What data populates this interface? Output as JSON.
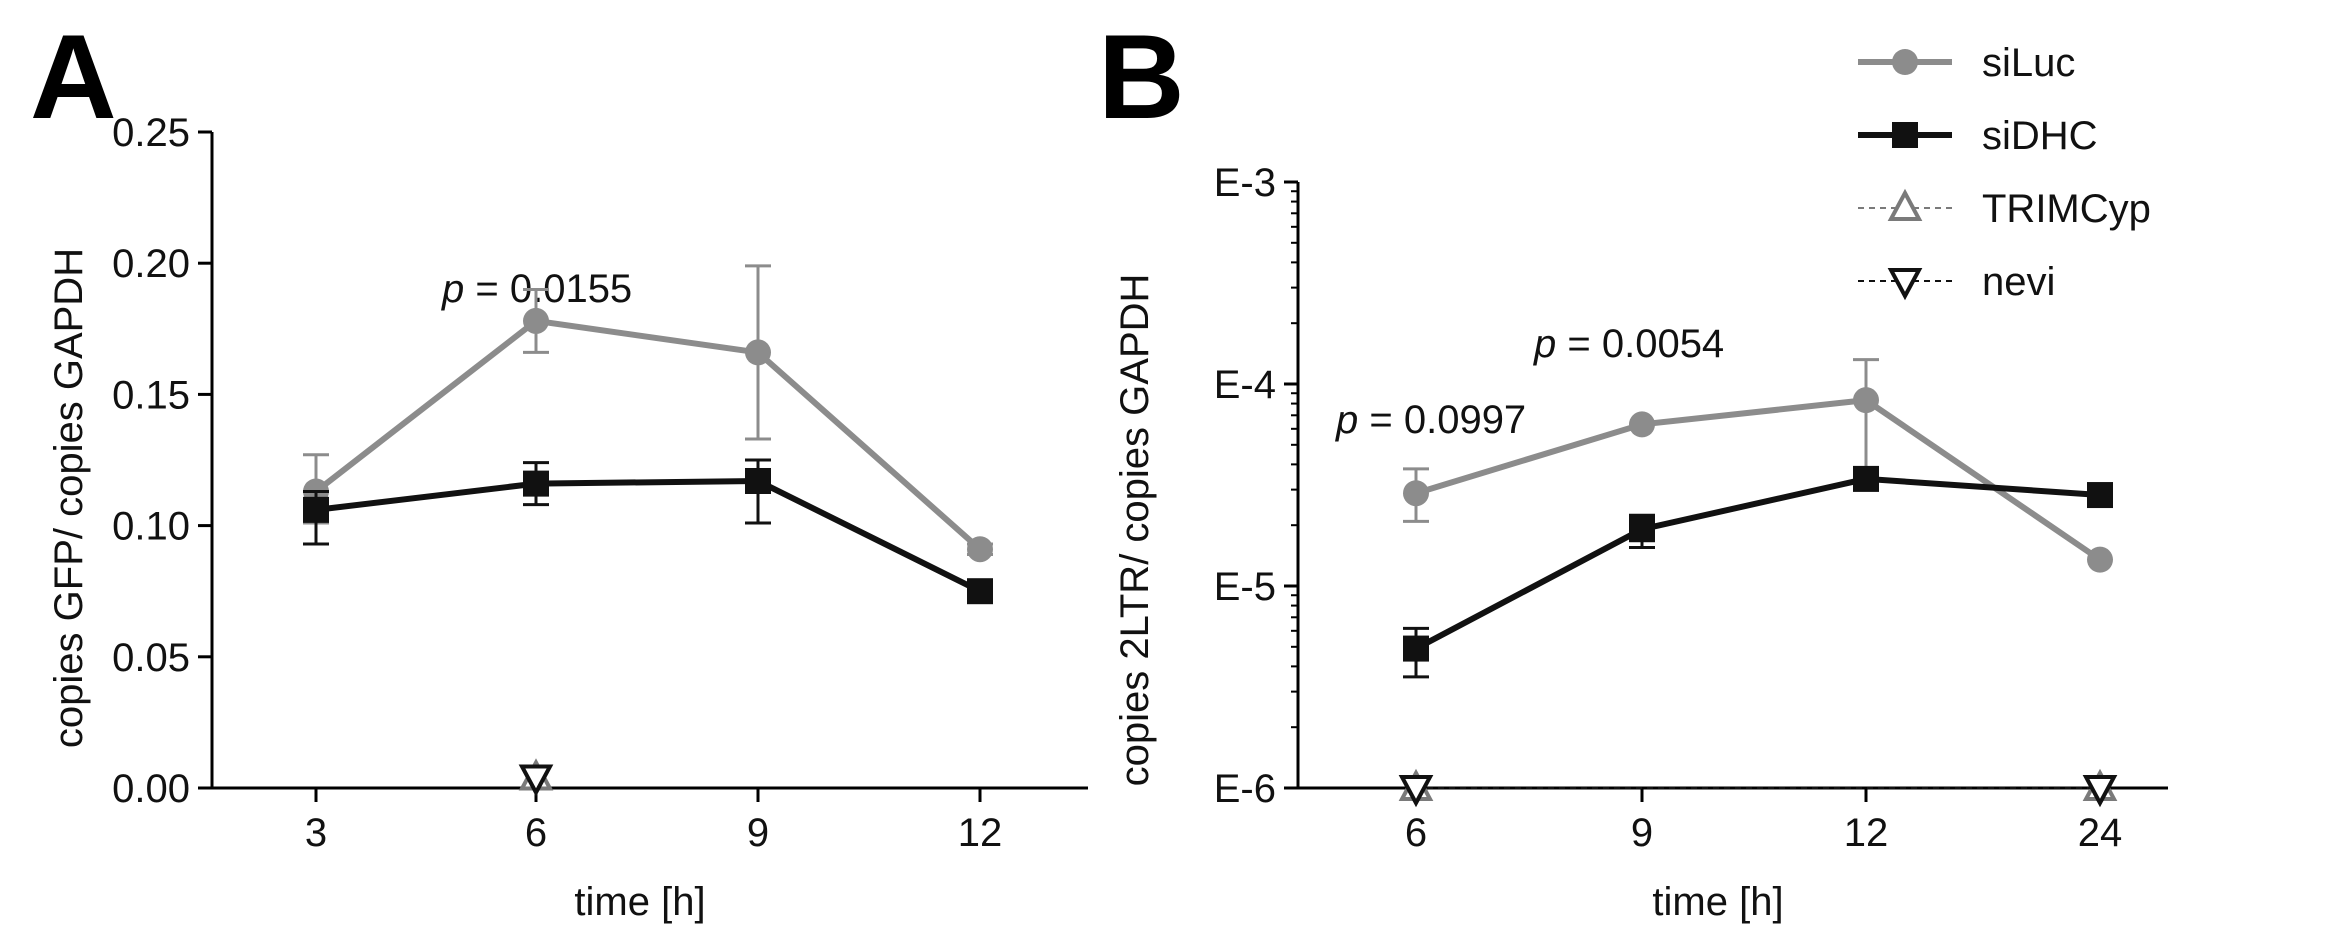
{
  "figure": {
    "panel_a_letter": "A",
    "panel_b_letter": "B"
  },
  "legend": [
    {
      "name": "siLuc",
      "marker": "circle",
      "color": "#8c8c8c",
      "dashed": false
    },
    {
      "name": "siDHC",
      "marker": "square",
      "color": "#111111",
      "dashed": false
    },
    {
      "name": "TRIMCyp",
      "marker": "triangle-up-open",
      "color": "#7a7a7a",
      "dashed": true
    },
    {
      "name": "nevi",
      "marker": "triangle-down-open",
      "color": "#111111",
      "dashed": true
    }
  ],
  "chart_data": [
    {
      "panel": "A",
      "type": "line",
      "xlabel": "time [h]",
      "ylabel": "copies GFP/ copies GAPDH",
      "x": [
        3,
        6,
        9,
        12
      ],
      "x_tick_labels": [
        "3",
        "6",
        "9",
        "12"
      ],
      "y_ticks": [
        0.0,
        0.05,
        0.1,
        0.15,
        0.2,
        0.25
      ],
      "y_tick_labels": [
        "0.00",
        "0.05",
        "0.10",
        "0.15",
        "0.20",
        "0.25"
      ],
      "ylim": [
        0,
        0.25
      ],
      "series": [
        {
          "name": "siLuc",
          "values": [
            0.113,
            0.178,
            0.166,
            0.091
          ],
          "err_high": [
            0.127,
            0.19,
            0.199,
            0.093
          ],
          "err_low": [
            0.101,
            0.166,
            0.133,
            0.089
          ]
        },
        {
          "name": "siDHC",
          "values": [
            0.106,
            0.116,
            0.117,
            0.075
          ],
          "err_high": [
            0.113,
            0.124,
            0.125,
            0.079
          ],
          "err_low": [
            0.093,
            0.108,
            0.101,
            0.071
          ]
        },
        {
          "name": "TRIMCyp",
          "x": [
            6
          ],
          "values": [
            0.004
          ]
        },
        {
          "name": "nevi",
          "x": [
            6
          ],
          "values": [
            0.004
          ]
        }
      ],
      "annotations": [
        {
          "italic": "p",
          "text": " = 0.0155",
          "x": 6
        }
      ]
    },
    {
      "panel": "B",
      "type": "line",
      "yscale": "log",
      "xlabel": "time [h]",
      "ylabel": "copies 2LTR/ copies GAPDH",
      "x_categories": [
        "6",
        "9",
        "12",
        "24"
      ],
      "y_ticks_exp": [
        -6,
        -5,
        -4,
        -3
      ],
      "y_tick_labels": [
        "E-6",
        "E-5",
        "E-4",
        "E-3"
      ],
      "ylim_exp": [
        -6,
        -3
      ],
      "series": [
        {
          "name": "siLuc",
          "values": [
            2.88e-05,
            6.31e-05,
            8.32e-05,
            1.35e-05
          ],
          "err_high": [
            3.8e-05,
            null,
            0.000132,
            null
          ],
          "err_low": [
            2.09e-05,
            null,
            3.16e-05,
            null
          ]
        },
        {
          "name": "siDHC",
          "values": [
            4.9e-06,
            1.91e-05,
            3.39e-05,
            2.82e-05
          ],
          "err_high": [
            6.17e-06,
            2.24e-05,
            3.63e-05,
            null
          ],
          "err_low": [
            3.55e-06,
            1.55e-05,
            3.09e-05,
            null
          ]
        },
        {
          "name": "TRIMCyp",
          "values": [
            1e-06,
            null,
            null,
            1e-06
          ]
        },
        {
          "name": "nevi",
          "values": [
            1e-06,
            null,
            null,
            1e-06
          ]
        }
      ],
      "annotations": [
        {
          "italic": "p",
          "text": " = 0.0997",
          "x": "6"
        },
        {
          "italic": "p",
          "text": " = 0.0054",
          "x": "9"
        }
      ]
    }
  ]
}
